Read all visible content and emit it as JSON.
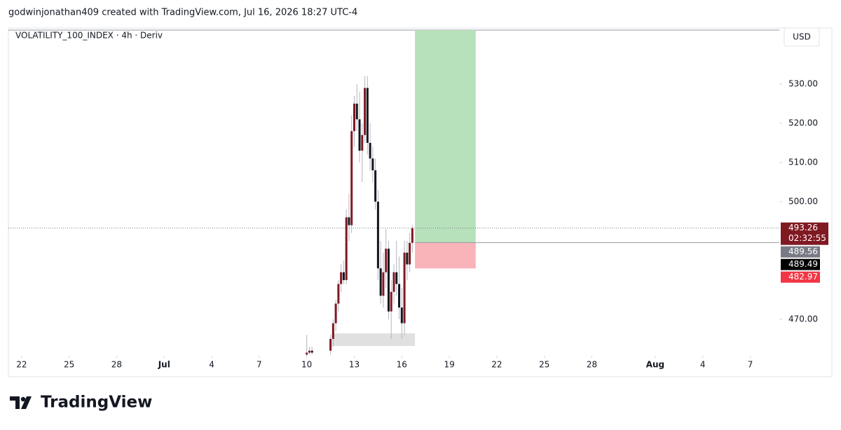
{
  "header": "godwinjonathan409 created with TradingView.com, Jul 16, 2026 18:27 UTC-4",
  "brand": "TradingView",
  "chart_data": {
    "type": "candlestick",
    "title": "VOLATILITY_100_INDEX · 4h · Deriv",
    "currency": "USD",
    "up_color": "#801922",
    "down_color": "#131722",
    "wick_color": "#b2b5be",
    "x": [
      "2026-07-10T00:00",
      "2026-07-10T04:00",
      "2026-07-10T08:00",
      "2026-07-11T12:00",
      "2026-07-11T16:00",
      "2026-07-11T20:00",
      "2026-07-12T00:00",
      "2026-07-12T04:00",
      "2026-07-12T08:00",
      "2026-07-12T12:00",
      "2026-07-12T16:00",
      "2026-07-12T20:00",
      "2026-07-13T00:00",
      "2026-07-13T04:00",
      "2026-07-13T08:00",
      "2026-07-13T12:00",
      "2026-07-13T16:00",
      "2026-07-13T20:00",
      "2026-07-14T00:00",
      "2026-07-14T04:00",
      "2026-07-14T08:00",
      "2026-07-14T12:00",
      "2026-07-14T16:00",
      "2026-07-14T20:00",
      "2026-07-15T00:00",
      "2026-07-15T04:00",
      "2026-07-15T08:00",
      "2026-07-15T12:00",
      "2026-07-15T16:00",
      "2026-07-15T20:00",
      "2026-07-16T00:00",
      "2026-07-16T04:00",
      "2026-07-16T08:00",
      "2026-07-16T12:00",
      "2026-07-16T16:00"
    ],
    "open": [
      461,
      461.5,
      462,
      462,
      465,
      469,
      474,
      479,
      482,
      480,
      496,
      494,
      518,
      525,
      521,
      513,
      517,
      529,
      515,
      511,
      508,
      500,
      483,
      476,
      482,
      488,
      472,
      477,
      482,
      479,
      473,
      469,
      487,
      484,
      489.5
    ],
    "high": [
      466,
      463,
      463,
      466,
      470,
      475,
      480,
      484,
      485,
      498,
      502,
      522,
      527,
      530,
      528,
      520,
      532,
      532,
      520,
      514,
      511,
      503,
      490,
      487,
      493,
      490,
      480,
      484,
      490,
      486,
      478,
      490,
      490,
      492,
      494
    ],
    "low": [
      460.7,
      461,
      461,
      461,
      463,
      467,
      472,
      477,
      479,
      479,
      490,
      492,
      514,
      518,
      510,
      505,
      515,
      512,
      508,
      505,
      498,
      480,
      474,
      473,
      478,
      470,
      465,
      474,
      476,
      470,
      465,
      466,
      480,
      482,
      487
    ],
    "close": [
      461.5,
      462,
      461.5,
      465,
      469,
      474,
      479,
      482,
      480,
      496,
      494,
      518,
      525,
      521,
      513,
      517,
      529,
      515,
      511,
      508,
      500,
      483,
      476,
      482,
      488,
      472,
      477,
      482,
      479,
      473,
      469,
      487,
      484,
      489.5,
      493.26
    ],
    "xlim": [
      "2026-06-21T04:00",
      "2026-08-08T20:00"
    ],
    "xticks": [
      {
        "value": "2026-06-22",
        "label": "22"
      },
      {
        "value": "2026-06-25",
        "label": "25"
      },
      {
        "value": "2026-06-28",
        "label": "28"
      },
      {
        "value": "2026-07-01",
        "label": "Jul"
      },
      {
        "value": "2026-07-04",
        "label": "4"
      },
      {
        "value": "2026-07-07",
        "label": "7"
      },
      {
        "value": "2026-07-10",
        "label": "10"
      },
      {
        "value": "2026-07-13",
        "label": "13"
      },
      {
        "value": "2026-07-16",
        "label": "16"
      },
      {
        "value": "2026-07-19",
        "label": "19"
      },
      {
        "value": "2026-07-22",
        "label": "22"
      },
      {
        "value": "2026-07-25",
        "label": "25"
      },
      {
        "value": "2026-07-28",
        "label": "28"
      },
      {
        "value": "2026-08-01",
        "label": "Aug"
      },
      {
        "value": "2026-08-04",
        "label": "4"
      },
      {
        "value": "2026-08-07",
        "label": "7"
      }
    ],
    "ylim": [
      460.7,
      543.75
    ],
    "yticks": [
      {
        "value": 470,
        "label": "470.00"
      },
      {
        "value": 500,
        "label": "500.00"
      },
      {
        "value": 510,
        "label": "510.00"
      },
      {
        "value": 520,
        "label": "520.00"
      },
      {
        "value": 530,
        "label": "530.00"
      }
    ],
    "last_price": {
      "value": 493.26,
      "label": "493.26",
      "countdown": "02:32:55",
      "color": "#801922"
    },
    "price_labels": [
      {
        "value": 489.56,
        "label": "489.56",
        "color": "#787b86"
      },
      {
        "value": 489.49,
        "label": "489.49",
        "color": "#000000"
      },
      {
        "value": 482.97,
        "label": "482.97",
        "color": "#f23645"
      }
    ],
    "position": {
      "entry": 489.56,
      "stop": 482.97,
      "start": "2026-07-16T20:00",
      "end": "2026-07-20T16:00",
      "profit_color": "#b7e1bb",
      "loss_color": "#f9b4b9"
    },
    "zone": {
      "low": 463.2,
      "high": 466.4,
      "start": "2026-07-11T14:00",
      "end": "2026-07-16T20:00",
      "color": "#e0e0e0"
    }
  }
}
